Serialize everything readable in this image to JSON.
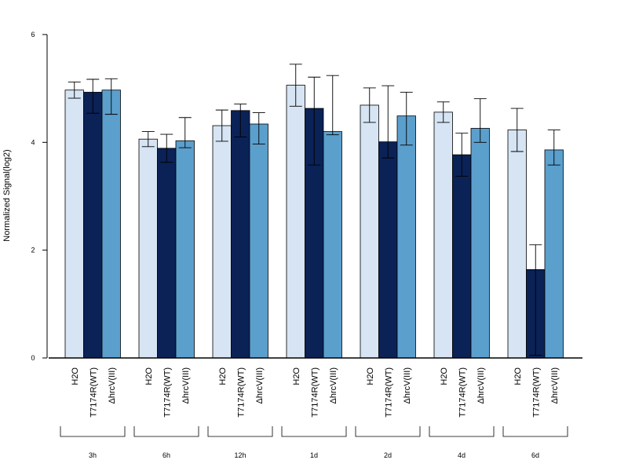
{
  "chart_data": {
    "type": "bar",
    "title": "",
    "xlabel": "",
    "ylabel": "Normalized Signal(log2)",
    "ylim": [
      0,
      6
    ],
    "yticks": [
      "0",
      "2",
      "4",
      "6"
    ],
    "grid": false,
    "legend": "none",
    "groups": [
      "3h",
      "6h",
      "12h",
      "1d",
      "2d",
      "4d",
      "6d"
    ],
    "bar_labels": [
      "H2O",
      "T7174R(WT)",
      "ΔhrcV(III)"
    ],
    "series": [
      {
        "name": "H2O",
        "color": "#d6e4f3",
        "values": [
          4.97,
          4.06,
          4.31,
          5.06,
          4.69,
          4.56,
          4.23
        ],
        "err_low": [
          4.82,
          3.92,
          4.02,
          4.67,
          4.37,
          4.37,
          3.83
        ],
        "err_high": [
          5.12,
          4.2,
          4.6,
          5.45,
          5.01,
          4.75,
          4.63
        ]
      },
      {
        "name": "T7174R(WT)",
        "color": "#0b2257",
        "values": [
          4.93,
          3.89,
          4.59,
          4.63,
          4.01,
          3.77,
          1.64
        ],
        "err_low": [
          4.54,
          3.63,
          4.1,
          3.58,
          3.71,
          3.37,
          0.05
        ],
        "err_high": [
          5.17,
          4.15,
          4.71,
          5.21,
          5.05,
          4.17,
          2.1
        ]
      },
      {
        "name": "ΔhrcV(III)",
        "color": "#5b9fcd",
        "values": [
          4.97,
          4.03,
          4.34,
          4.2,
          4.49,
          4.26,
          3.86
        ],
        "err_low": [
          4.52,
          3.9,
          3.97,
          4.14,
          3.95,
          4.0,
          3.58
        ],
        "err_high": [
          5.18,
          4.46,
          4.55,
          5.24,
          4.93,
          4.81,
          4.23
        ]
      }
    ]
  }
}
